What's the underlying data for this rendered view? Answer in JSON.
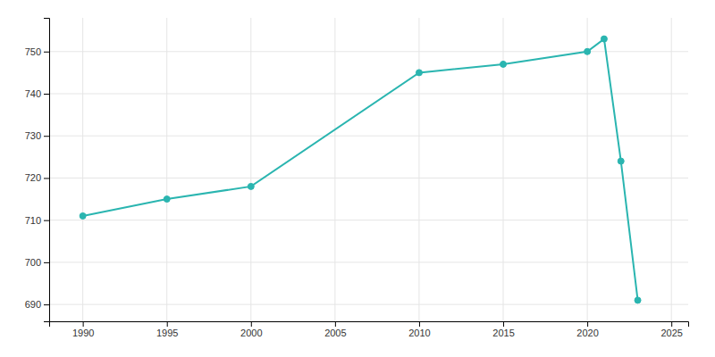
{
  "chart_data": {
    "type": "line",
    "x": [
      1990,
      1995,
      2000,
      2010,
      2015,
      2020,
      2021,
      2022,
      2023
    ],
    "values": [
      711,
      715,
      718,
      745,
      747,
      750,
      753,
      724,
      691
    ],
    "color": "#2ab5b0",
    "marker": "circle",
    "xlim": [
      1988,
      2026
    ],
    "ylim": [
      686,
      758
    ],
    "xticks": [
      1990,
      1995,
      2000,
      2005,
      2010,
      2015,
      2020,
      2025
    ],
    "yticks": [
      690,
      700,
      710,
      720,
      730,
      740,
      750
    ],
    "grid": true
  }
}
